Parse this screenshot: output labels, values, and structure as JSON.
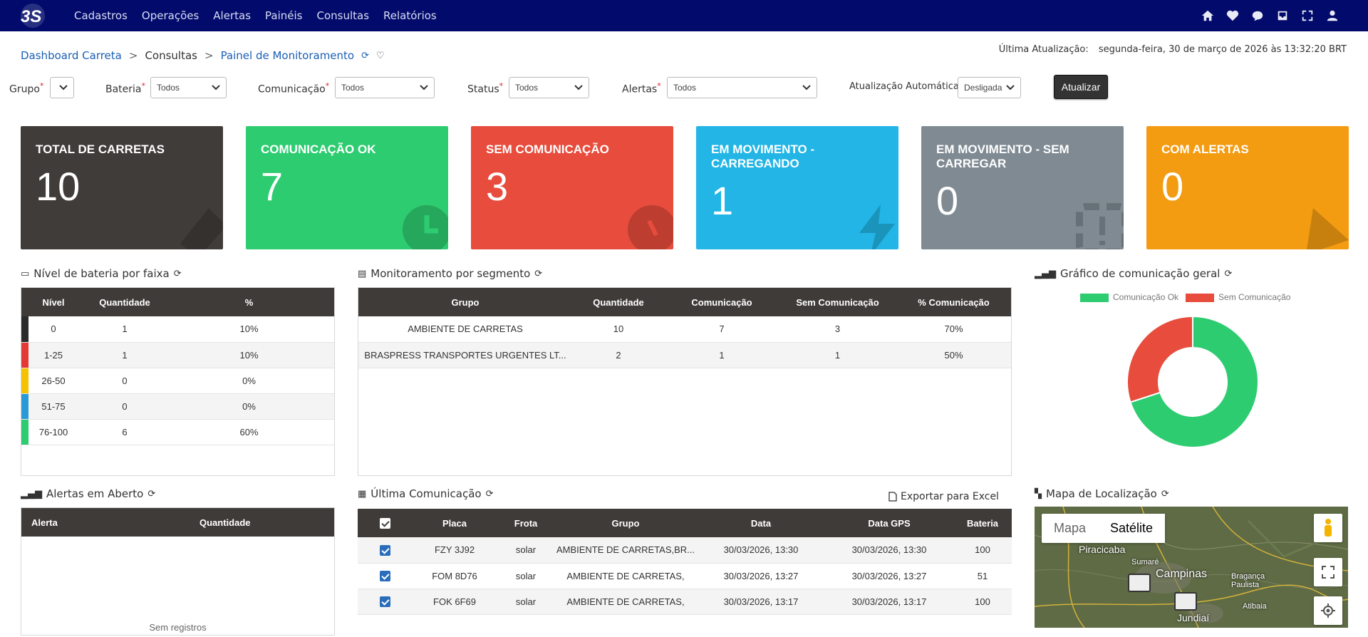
{
  "nav": {
    "logo_text": "3S",
    "items": [
      "Cadastros",
      "Operações",
      "Alertas",
      "Painéis",
      "Consultas",
      "Relatórios"
    ],
    "icons": [
      "home-icon",
      "heart-icon",
      "chat-icon",
      "inbox-icon",
      "expand-icon",
      "user-icon"
    ]
  },
  "breadcrumb": {
    "item1": "Dashboard Carreta",
    "item2": "Consultas",
    "item3": "Painel de Monitoramento",
    "sep": ">"
  },
  "last_update": {
    "label": "Última Atualização:",
    "value": "segunda-feira, 30 de março de 2026 às 13:32:20 BRT"
  },
  "filters": {
    "grupo_label": "Grupo",
    "grupo_value": "",
    "bateria_label": "Bateria",
    "bateria_value": "Todos",
    "comunicacao_label": "Comunicação",
    "comunicacao_value": "Todos",
    "status_label": "Status",
    "status_value": "Todos",
    "alertas_label": "Alertas",
    "alertas_value": "Todos",
    "auto_label": "Atualização Automática",
    "auto_value": "Desligada",
    "required_mark": "*",
    "submit_label": "Atualizar"
  },
  "cards": [
    {
      "title": "TOTAL DE CARRETAS",
      "value": "10",
      "color": "#403c3a",
      "icon": "gauge-icon"
    },
    {
      "title": "COMUNICAÇÃO OK",
      "value": "7",
      "color": "#2ecc71",
      "icon": "clock-icon"
    },
    {
      "title": "SEM COMUNICAÇÃO",
      "value": "3",
      "color": "#e74c3c",
      "icon": "alarm-icon"
    },
    {
      "title": "EM MOVIMENTO - CARREGANDO",
      "value": "1",
      "color": "#22b5e6",
      "icon": "bolt-icon"
    },
    {
      "title": "EM MOVIMENTO - SEM CARREGAR",
      "value": "0",
      "color": "#7f8a93",
      "icon": "warning-icon"
    },
    {
      "title": "COM ALERTAS",
      "value": "0",
      "color": "#f39c12",
      "icon": "bell-icon"
    }
  ],
  "battery": {
    "title": "Nível de bateria por faixa",
    "headers": [
      "Nível",
      "Quantidade",
      "%"
    ],
    "rows": [
      {
        "level": "0",
        "qty": "1",
        "pct": "10%",
        "color": "#2b2b2b"
      },
      {
        "level": "1-25",
        "qty": "1",
        "pct": "10%",
        "color": "#e53935"
      },
      {
        "level": "26-50",
        "qty": "0",
        "pct": "0%",
        "color": "#f6c200"
      },
      {
        "level": "51-75",
        "qty": "0",
        "pct": "0%",
        "color": "#2a9ad6"
      },
      {
        "level": "76-100",
        "qty": "6",
        "pct": "60%",
        "color": "#2ecc71"
      }
    ]
  },
  "segment": {
    "title": "Monitoramento por segmento",
    "headers": [
      "Grupo",
      "Quantidade",
      "Comunicação",
      "Sem Comunicação",
      "% Comunicação"
    ],
    "rows": [
      {
        "grupo": "AMBIENTE DE CARRETAS",
        "qty": "10",
        "com": "7",
        "sem": "3",
        "pct": "70%"
      },
      {
        "grupo": "BRASPRESS TRANSPORTES URGENTES LT...",
        "qty": "2",
        "com": "1",
        "sem": "1",
        "pct": "50%"
      }
    ]
  },
  "comm_chart": {
    "title": "Gráfico de comunicação geral"
  },
  "chart_data": {
    "type": "pie",
    "categories": [
      "Comunicação Ok",
      "Sem Comunicação"
    ],
    "values": [
      7,
      3
    ],
    "colors": [
      "#2ecc71",
      "#e74c3c"
    ],
    "donut": true,
    "legend": "top"
  },
  "alerts": {
    "title": "Alertas em Aberto",
    "headers": [
      "Alerta",
      "Quantidade"
    ],
    "empty_text": "Sem registros"
  },
  "last_comm": {
    "title": "Última Comunicação",
    "export_label": "Exportar para Excel",
    "headers": [
      "Placa",
      "Frota",
      "Grupo",
      "Data",
      "Data GPS",
      "Bateria"
    ],
    "rows": [
      {
        "placa": "FZY 3J92",
        "frota": "solar",
        "grupo": "AMBIENTE DE CARRETAS,BR...",
        "data": "30/03/2026, 13:30",
        "gps": "30/03/2026, 13:30",
        "bat": "100"
      },
      {
        "placa": "FOM 8D76",
        "frota": "solar",
        "grupo": "AMBIENTE DE CARRETAS,",
        "data": "30/03/2026, 13:27",
        "gps": "30/03/2026, 13:27",
        "bat": "51"
      },
      {
        "placa": "FOK 6F69",
        "frota": "solar",
        "grupo": "AMBIENTE DE CARRETAS,",
        "data": "30/03/2026, 13:17",
        "gps": "30/03/2026, 13:17",
        "bat": "100"
      }
    ]
  },
  "map": {
    "title": "Mapa de Localização",
    "tab_map": "Mapa",
    "tab_sat": "Satélite",
    "labels": {
      "piracicaba": "Piracicaba",
      "sumare": "Sumaré",
      "campinas": "Campinas",
      "braganca": "Bragança Paulista",
      "atibaia": "Atibaia",
      "jundiai": "Jundiaí"
    }
  }
}
